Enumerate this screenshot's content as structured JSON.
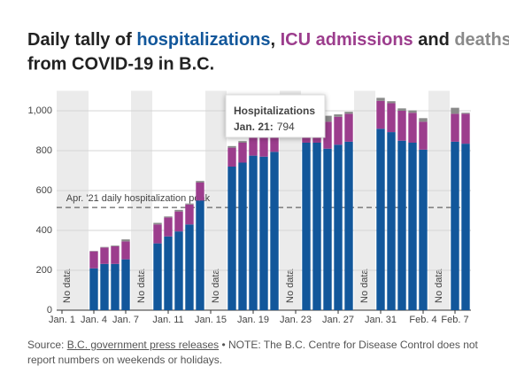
{
  "chart_data": {
    "type": "stacked-bar",
    "title_parts": [
      "Daily tally of ",
      ", ",
      " and "
    ],
    "title_line2": "from COVID-19 in B.C.",
    "categories": [
      "Jan. 1",
      null,
      null,
      "Jan. 4",
      null,
      null,
      "Jan. 7",
      null,
      null,
      null,
      "Jan. 11",
      null,
      null,
      null,
      "Jan. 15",
      null,
      null,
      null,
      "Jan. 19",
      null,
      null,
      null,
      "Jan. 23",
      null,
      null,
      null,
      "Jan. 27",
      null,
      null,
      null,
      "Jan. 31",
      null,
      null,
      null,
      "Feb. 4",
      null,
      null,
      "Feb. 7",
      null
    ],
    "series": [
      {
        "name": "hospitalizations",
        "color": "#12579b",
        "values": [
          null,
          null,
          null,
          210,
          232,
          232,
          255,
          null,
          null,
          335,
          370,
          395,
          430,
          550,
          null,
          null,
          720,
          740,
          775,
          770,
          794,
          null,
          null,
          840,
          840,
          810,
          830,
          845,
          null,
          null,
          910,
          893,
          850,
          840,
          805,
          null,
          null,
          845,
          835
        ]
      },
      {
        "name": "ICU admissions",
        "color": "#9c3d8d",
        "values": [
          null,
          null,
          null,
          85,
          82,
          88,
          90,
          null,
          null,
          95,
          95,
          100,
          100,
          90,
          null,
          null,
          95,
          100,
          100,
          105,
          110,
          null,
          null,
          110,
          110,
          135,
          140,
          140,
          null,
          null,
          140,
          145,
          150,
          150,
          140,
          null,
          null,
          140,
          150
        ]
      },
      {
        "name": "deaths",
        "color": "#8a8a8a",
        "values": [
          null,
          null,
          null,
          2,
          3,
          4,
          10,
          null,
          null,
          8,
          5,
          8,
          5,
          8,
          null,
          null,
          8,
          8,
          8,
          5,
          8,
          null,
          null,
          10,
          10,
          30,
          12,
          10,
          null,
          null,
          15,
          10,
          12,
          12,
          18,
          null,
          null,
          30,
          5
        ]
      }
    ],
    "no_data_label": "No data",
    "no_data_color": "#ebebeb",
    "ylim": [
      0,
      1100
    ],
    "yticks": [
      0,
      200,
      400,
      600,
      800,
      {
        "value": 1000,
        "label": "1,000"
      }
    ],
    "grid": true,
    "reference": {
      "value": 515,
      "label": "Apr. '21 daily hospitalization peak"
    },
    "tooltip": {
      "title": "Hospitalizations",
      "date": "Jan. 21:",
      "index": 20
    },
    "source_prefix": "Source: ",
    "source_link": "B.C. government press releases",
    "note": " • NOTE: The B.C. Centre for Disease Control does not report numbers on weekends or holidays."
  }
}
